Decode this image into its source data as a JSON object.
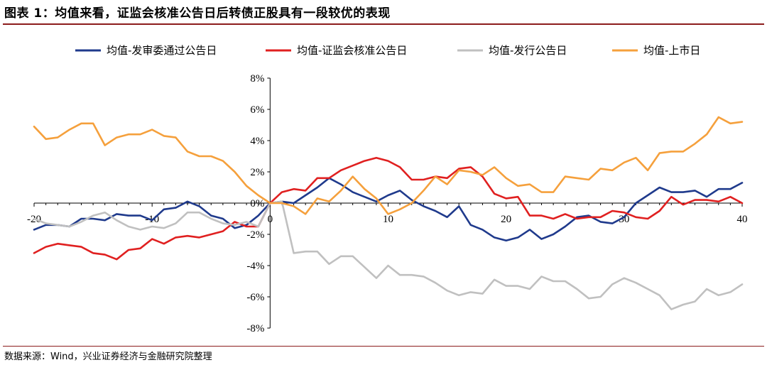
{
  "header": {
    "title": "图表 1：均值来看，证监会核准公告日后转债正股具有一段较优的表现"
  },
  "footer": {
    "source": "数据来源：Wind，兴业证券经济与金融研究院整理"
  },
  "chart_data": {
    "type": "line",
    "title": "",
    "xlabel": "",
    "ylabel": "",
    "xlim": [
      -20,
      40
    ],
    "ylim": [
      -8,
      8
    ],
    "x_ticks": [
      -20,
      -10,
      0,
      10,
      20,
      30,
      40
    ],
    "x_tick_labels": [
      "-20",
      "-10",
      "0",
      "10",
      "20",
      "30",
      "40"
    ],
    "y_ticks": [
      8,
      6,
      4,
      2,
      0,
      -2,
      -4,
      -6,
      -8
    ],
    "y_tick_labels": [
      "8%",
      "6%",
      "4%",
      "2%",
      "0%",
      "-2%",
      "-4%",
      "-6%",
      "-8%"
    ],
    "grid": false,
    "legend_position": "top",
    "x": [
      -20,
      -19,
      -18,
      -17,
      -16,
      -15,
      -14,
      -13,
      -12,
      -11,
      -10,
      -9,
      -8,
      -7,
      -6,
      -5,
      -4,
      -3,
      -2,
      -1,
      0,
      1,
      2,
      3,
      4,
      5,
      6,
      7,
      8,
      9,
      10,
      11,
      12,
      13,
      14,
      15,
      16,
      17,
      18,
      19,
      20,
      21,
      22,
      23,
      24,
      25,
      26,
      27,
      28,
      29,
      30,
      31,
      32,
      33,
      34,
      35,
      36,
      37,
      38,
      39,
      40
    ],
    "series": [
      {
        "name": "均值-发审委通过公告日",
        "color": "#1f3a8c",
        "values": [
          -1.7,
          -1.4,
          -1.4,
          -1.5,
          -1.0,
          -1.0,
          -1.1,
          -0.7,
          -0.8,
          -0.8,
          -1.1,
          -0.4,
          -0.3,
          0.1,
          -0.2,
          -0.8,
          -1.0,
          -1.6,
          -1.4,
          -0.8,
          0.0,
          0.1,
          0.0,
          0.5,
          1.0,
          1.6,
          1.2,
          0.7,
          0.4,
          0.1,
          0.5,
          0.8,
          0.2,
          -0.2,
          -0.5,
          -0.9,
          -0.2,
          -1.4,
          -1.7,
          -2.2,
          -2.4,
          -2.2,
          -1.7,
          -2.3,
          -2.0,
          -1.5,
          -0.9,
          -0.8,
          -1.2,
          -1.3,
          -0.9,
          0.0,
          0.5,
          1.0,
          0.7,
          0.7,
          0.8,
          0.4,
          0.9,
          0.9,
          1.3
        ]
      },
      {
        "name": "均值-证监会核准公告日",
        "color": "#e02020",
        "values": [
          -3.2,
          -2.8,
          -2.6,
          -2.7,
          -2.8,
          -3.2,
          -3.3,
          -3.6,
          -3.0,
          -2.9,
          -2.3,
          -2.6,
          -2.2,
          -2.1,
          -2.2,
          -2.0,
          -1.8,
          -1.2,
          -1.5,
          -1.5,
          0.0,
          0.7,
          0.9,
          0.8,
          1.6,
          1.6,
          2.1,
          2.4,
          2.7,
          2.9,
          2.7,
          2.3,
          1.5,
          1.5,
          1.7,
          1.6,
          2.2,
          2.3,
          1.7,
          0.6,
          0.3,
          0.4,
          -0.8,
          -0.8,
          -1.0,
          -0.7,
          -1.0,
          -0.9,
          -0.9,
          -0.5,
          -0.6,
          -0.9,
          -1.0,
          -0.5,
          0.4,
          -0.1,
          0.2,
          0.2,
          0.1,
          0.4,
          0.0
        ]
      },
      {
        "name": "均值-发行公告日",
        "color": "#c0c0c0",
        "values": [
          -1.0,
          -1.3,
          -1.4,
          -1.5,
          -1.2,
          -0.8,
          -0.6,
          -1.1,
          -1.5,
          -1.7,
          -1.5,
          -1.6,
          -1.3,
          -0.6,
          -0.6,
          -1.0,
          -1.3,
          -1.4,
          -1.2,
          -1.5,
          0.0,
          0.1,
          -3.2,
          -3.1,
          -3.1,
          -3.9,
          -3.4,
          -3.4,
          -4.1,
          -4.8,
          -4.0,
          -4.6,
          -4.6,
          -4.7,
          -5.1,
          -5.6,
          -5.9,
          -5.7,
          -5.8,
          -4.9,
          -5.3,
          -5.3,
          -5.5,
          -4.7,
          -5.0,
          -5.0,
          -5.5,
          -6.1,
          -6.0,
          -5.2,
          -4.8,
          -5.1,
          -5.5,
          -5.9,
          -6.8,
          -6.5,
          -6.3,
          -5.5,
          -5.9,
          -5.7,
          -5.2
        ]
      },
      {
        "name": "均值-上市日",
        "color": "#f5a03c",
        "values": [
          4.9,
          4.1,
          4.2,
          4.7,
          5.1,
          5.1,
          3.7,
          4.2,
          4.4,
          4.4,
          4.7,
          4.3,
          4.2,
          3.3,
          3.0,
          3.0,
          2.7,
          2.0,
          1.1,
          0.5,
          0.0,
          0.0,
          -0.2,
          -0.7,
          0.3,
          0.1,
          0.8,
          1.7,
          0.9,
          0.3,
          -0.7,
          -0.4,
          0.0,
          0.8,
          1.7,
          1.2,
          2.1,
          2.0,
          1.8,
          2.3,
          1.6,
          1.1,
          1.2,
          0.7,
          0.7,
          1.7,
          1.6,
          1.5,
          2.2,
          2.1,
          2.6,
          2.9,
          2.1,
          3.2,
          3.3,
          3.3,
          3.8,
          4.4,
          5.5,
          5.1,
          5.2
        ]
      }
    ]
  }
}
